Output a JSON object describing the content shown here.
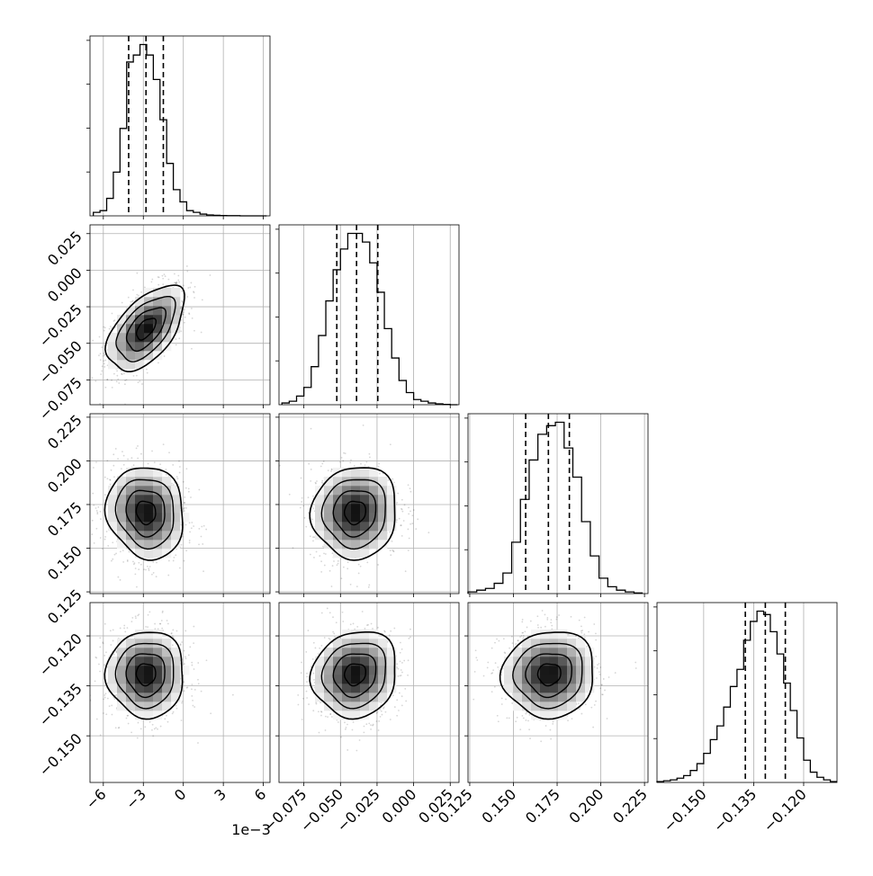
{
  "figure": {
    "offset_label": "1e−3"
  },
  "params": [
    {
      "range": [
        -7.0,
        6.5
      ],
      "ticks": [
        -6,
        -3,
        0,
        3,
        6
      ],
      "tick_labels": [
        "−6",
        "−3",
        "0",
        "3",
        "6"
      ],
      "mean": -2.8,
      "sd": 1.45,
      "quantiles": [
        -4.1,
        -2.8,
        -1.5
      ]
    },
    {
      "range": [
        -0.092,
        0.031
      ],
      "ticks": [
        -0.075,
        -0.05,
        -0.025,
        0.0,
        0.025
      ],
      "tick_labels": [
        "−0.075",
        "−0.050",
        "−0.025",
        "0.000",
        "0.025"
      ],
      "mean": -0.04,
      "sd": 0.0145,
      "quantiles": [
        -0.0525,
        -0.039,
        -0.0245
      ]
    },
    {
      "range": [
        0.124,
        0.227
      ],
      "ticks": [
        0.125,
        0.15,
        0.175,
        0.2,
        0.225
      ],
      "tick_labels": [
        "0.125",
        "0.150",
        "0.175",
        "0.200",
        "0.225"
      ],
      "mean": 0.1705,
      "sd": 0.0132,
      "quantiles": [
        0.157,
        0.17,
        0.182
      ]
    },
    {
      "range": [
        -0.164,
        -0.11
      ],
      "ticks": [
        -0.15,
        -0.135,
        -0.12
      ],
      "tick_labels": [
        "−0.150",
        "−0.135",
        "−0.120"
      ],
      "mean": -0.1315,
      "sd": 0.0065,
      "quantiles": [
        -0.1375,
        -0.1315,
        -0.1255
      ]
    }
  ],
  "chart_data": [
    {
      "type": "histogram",
      "variable": 1,
      "x_tick_labels": [
        "−6",
        "−3",
        "0",
        "3",
        "6"
      ],
      "x_offset_label": "1e−3",
      "bin_centers": [
        -6.5,
        -6.0,
        -5.5,
        -5.0,
        -4.5,
        -4.0,
        -3.5,
        -3.0,
        -2.5,
        -2.0,
        -1.5,
        -1.0,
        -0.5,
        0.0,
        0.5,
        1.0,
        1.5,
        2.0,
        2.5,
        3.0,
        3.5,
        4.0,
        4.5,
        5.0,
        5.5,
        6.0
      ],
      "counts": [
        2,
        3,
        10,
        25,
        50,
        88,
        92,
        98,
        92,
        78,
        55,
        30,
        15,
        8,
        3,
        2,
        1,
        0.5,
        0.3,
        0.2,
        0.1,
        0.1,
        0,
        0,
        0,
        0
      ],
      "quantiles": [
        -4.1,
        -2.8,
        -1.5
      ]
    },
    {
      "type": "scatter-contour",
      "variables": [
        1,
        2
      ],
      "y_tick_labels": [
        "0.025",
        "0.000",
        "−0.025",
        "−0.050",
        "−0.075"
      ],
      "center": [
        -2.8,
        -0.04
      ],
      "correlation": 0.55
    },
    {
      "type": "histogram",
      "variable": 2,
      "bin_centers": [
        -0.0875,
        -0.0825,
        -0.0775,
        -0.0725,
        -0.0675,
        -0.0625,
        -0.0575,
        -0.0525,
        -0.0475,
        -0.0425,
        -0.0375,
        -0.0325,
        -0.0275,
        -0.0225,
        -0.0175,
        -0.0125,
        -0.0075,
        -0.0025,
        0.0025,
        0.0075,
        0.0125,
        0.0175,
        0.0225,
        0.0275
      ],
      "counts": [
        1,
        2,
        5,
        10,
        22,
        40,
        60,
        78,
        90,
        99,
        99,
        94,
        82,
        65,
        44,
        27,
        14,
        7,
        3,
        2,
        1,
        0.5,
        0.2,
        0
      ],
      "quantiles": [
        -0.0525,
        -0.039,
        -0.0245
      ]
    },
    {
      "type": "scatter-contour",
      "variables": [
        1,
        3
      ],
      "y_tick_labels": [
        "0.225",
        "0.200",
        "0.175",
        "0.150",
        "0.125"
      ],
      "center": [
        -2.8,
        0.1705
      ],
      "correlation": -0.1
    },
    {
      "type": "scatter-contour",
      "variables": [
        2,
        3
      ],
      "center": [
        -0.04,
        0.1705
      ],
      "correlation": 0.05
    },
    {
      "type": "histogram",
      "variable": 3,
      "bin_centers": [
        0.1265,
        0.1315,
        0.1365,
        0.1415,
        0.1465,
        0.1515,
        0.1565,
        0.1615,
        0.1665,
        0.1715,
        0.1765,
        0.1815,
        0.1865,
        0.1915,
        0.1965,
        0.2015,
        0.2065,
        0.2115,
        0.2165,
        0.2215
      ],
      "counts": [
        1,
        2,
        3,
        6,
        12,
        30,
        55,
        78,
        93,
        98,
        100,
        85,
        68,
        42,
        22,
        9,
        4,
        2,
        1,
        0.4
      ],
      "quantiles": [
        0.157,
        0.17,
        0.182
      ]
    },
    {
      "type": "scatter-contour",
      "variables": [
        1,
        4
      ],
      "y_tick_labels": [
        "−0.120",
        "−0.135",
        "−0.150"
      ],
      "center": [
        -2.8,
        -0.1315
      ],
      "correlation": 0.0
    },
    {
      "type": "scatter-contour",
      "variables": [
        2,
        4
      ],
      "center": [
        -0.04,
        -0.1315
      ],
      "correlation": 0.1
    },
    {
      "type": "scatter-contour",
      "variables": [
        3,
        4
      ],
      "center": [
        0.1705,
        -0.1315
      ],
      "correlation": 0.05
    },
    {
      "type": "histogram",
      "variable": 4,
      "bin_centers": [
        -0.163,
        -0.161,
        -0.159,
        -0.157,
        -0.155,
        -0.153,
        -0.151,
        -0.149,
        -0.147,
        -0.145,
        -0.143,
        -0.141,
        -0.139,
        -0.137,
        -0.135,
        -0.133,
        -0.131,
        -0.129,
        -0.127,
        -0.125,
        -0.123,
        -0.121,
        -0.119,
        -0.117,
        -0.115,
        -0.113,
        -0.111
      ],
      "counts": [
        0.5,
        1,
        1.5,
        2.5,
        4,
        7,
        11,
        17,
        25,
        33,
        44,
        56,
        66,
        83,
        94,
        100,
        98,
        88,
        75,
        58,
        42,
        26,
        13,
        6,
        3,
        1.5,
        0.5
      ],
      "quantiles": [
        -0.1375,
        -0.1315,
        -0.1255
      ]
    }
  ]
}
